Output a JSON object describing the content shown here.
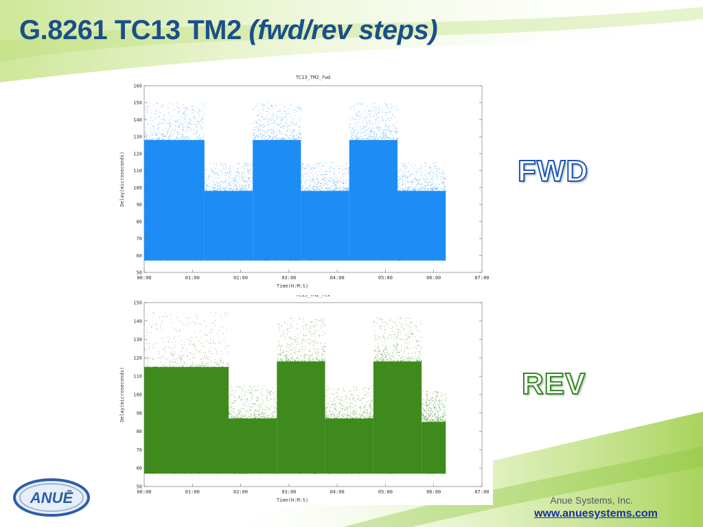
{
  "slide": {
    "title_main": "G.8261 TC13 TM2",
    "title_italic": "(fwd/rev steps)",
    "fwd_label": "FWD",
    "rev_label": "REV",
    "company": "Anue Systems, Inc.",
    "website": "www.anuesystems.com",
    "logo_text": "ANUĒ",
    "colors": {
      "title": "#1a4f8a",
      "fwd_series": "#1e8cf5",
      "rev_series": "#3f8a1c",
      "background_accent": "#a9d35a"
    }
  },
  "chart_data": [
    {
      "type": "scatter",
      "title": "TC13_TM2_fwd",
      "xlabel": "Time(H:M:S)",
      "ylabel": "Delay(microseconds)",
      "color": "#1e8cf5",
      "xlim": [
        0,
        7
      ],
      "ylim": [
        50,
        160
      ],
      "x_ticks": [
        "00:00",
        "01:00",
        "02:00",
        "03:00",
        "04:00",
        "05:00",
        "06:00",
        "07:00"
      ],
      "y_ticks": [
        "50",
        "60",
        "70",
        "80",
        "90",
        "100",
        "110",
        "120",
        "130",
        "140",
        "150",
        "160"
      ],
      "segments": [
        {
          "start_hours": 0.0,
          "end_hours": 1.25,
          "floor": 57,
          "dense_top": 128,
          "max_top": 150
        },
        {
          "start_hours": 1.25,
          "end_hours": 2.25,
          "floor": 57,
          "dense_top": 98,
          "max_top": 115
        },
        {
          "start_hours": 2.25,
          "end_hours": 3.25,
          "floor": 57,
          "dense_top": 128,
          "max_top": 150
        },
        {
          "start_hours": 3.25,
          "end_hours": 4.25,
          "floor": 57,
          "dense_top": 98,
          "max_top": 115
        },
        {
          "start_hours": 4.25,
          "end_hours": 5.25,
          "floor": 57,
          "dense_top": 128,
          "max_top": 150
        },
        {
          "start_hours": 5.25,
          "end_hours": 6.25,
          "floor": 57,
          "dense_top": 98,
          "max_top": 115
        }
      ]
    },
    {
      "type": "scatter",
      "title": "TC13_TM2_rev",
      "xlabel": "Time(H:M:S)",
      "ylabel": "Delay(microseconds)",
      "color": "#3f8a1c",
      "xlim": [
        0,
        7
      ],
      "ylim": [
        50,
        150
      ],
      "x_ticks": [
        "00:00",
        "01:00",
        "02:00",
        "03:00",
        "04:00",
        "05:00",
        "06:00",
        "07:00"
      ],
      "y_ticks": [
        "50",
        "60",
        "70",
        "80",
        "90",
        "100",
        "110",
        "120",
        "130",
        "140",
        "150"
      ],
      "segments": [
        {
          "start_hours": 0.0,
          "end_hours": 1.75,
          "floor": 57,
          "dense_top": 115,
          "max_top": 145
        },
        {
          "start_hours": 1.75,
          "end_hours": 2.75,
          "floor": 57,
          "dense_top": 87,
          "max_top": 105
        },
        {
          "start_hours": 2.75,
          "end_hours": 3.75,
          "floor": 57,
          "dense_top": 118,
          "max_top": 142
        },
        {
          "start_hours": 3.75,
          "end_hours": 4.75,
          "floor": 57,
          "dense_top": 87,
          "max_top": 105
        },
        {
          "start_hours": 4.75,
          "end_hours": 5.75,
          "floor": 57,
          "dense_top": 118,
          "max_top": 142
        },
        {
          "start_hours": 5.75,
          "end_hours": 6.25,
          "floor": 57,
          "dense_top": 85,
          "max_top": 102
        }
      ]
    }
  ]
}
